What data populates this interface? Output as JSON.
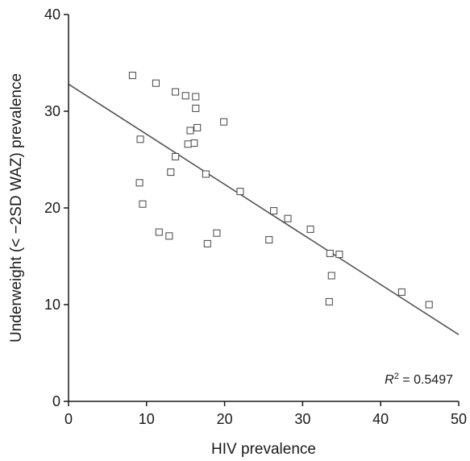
{
  "chart_data": {
    "type": "scatter",
    "xlabel": "HIV prevalence",
    "ylabel": "Underweight (< −2SD WAZ) prevalence",
    "xlim": [
      0,
      50
    ],
    "ylim": [
      0,
      40
    ],
    "xticks": [
      0,
      10,
      20,
      30,
      40,
      50
    ],
    "yticks": [
      0,
      10,
      20,
      30,
      40
    ],
    "grid": false,
    "annotation": {
      "r2_symbol": "R",
      "r2_sup": "2",
      "r2_value": " = 0.5497"
    },
    "trendline": {
      "x": [
        0,
        50
      ],
      "y": [
        32.8,
        6.9
      ]
    },
    "points": [
      {
        "x": 8.2,
        "y": 33.7
      },
      {
        "x": 11.2,
        "y": 32.9
      },
      {
        "x": 13.7,
        "y": 32.0
      },
      {
        "x": 15.0,
        "y": 31.6
      },
      {
        "x": 16.3,
        "y": 31.5
      },
      {
        "x": 16.3,
        "y": 30.3
      },
      {
        "x": 19.9,
        "y": 28.9
      },
      {
        "x": 16.5,
        "y": 28.3
      },
      {
        "x": 15.6,
        "y": 28.0
      },
      {
        "x": 9.2,
        "y": 27.1
      },
      {
        "x": 16.1,
        "y": 26.7
      },
      {
        "x": 15.3,
        "y": 26.6
      },
      {
        "x": 13.7,
        "y": 25.3
      },
      {
        "x": 13.1,
        "y": 23.7
      },
      {
        "x": 17.6,
        "y": 23.5
      },
      {
        "x": 9.1,
        "y": 22.6
      },
      {
        "x": 22.0,
        "y": 21.7
      },
      {
        "x": 9.5,
        "y": 20.4
      },
      {
        "x": 26.3,
        "y": 19.7
      },
      {
        "x": 28.1,
        "y": 18.9
      },
      {
        "x": 31.0,
        "y": 17.8
      },
      {
        "x": 11.6,
        "y": 17.5
      },
      {
        "x": 19.0,
        "y": 17.4
      },
      {
        "x": 12.9,
        "y": 17.1
      },
      {
        "x": 25.7,
        "y": 16.7
      },
      {
        "x": 17.8,
        "y": 16.3
      },
      {
        "x": 33.5,
        "y": 15.3
      },
      {
        "x": 34.7,
        "y": 15.2
      },
      {
        "x": 33.7,
        "y": 13.0
      },
      {
        "x": 42.7,
        "y": 11.3
      },
      {
        "x": 33.4,
        "y": 10.3
      },
      {
        "x": 46.2,
        "y": 10.0
      }
    ],
    "colors": {
      "axis": "#1a1a1a",
      "trendline": "#555555",
      "marker": "#444444"
    }
  }
}
